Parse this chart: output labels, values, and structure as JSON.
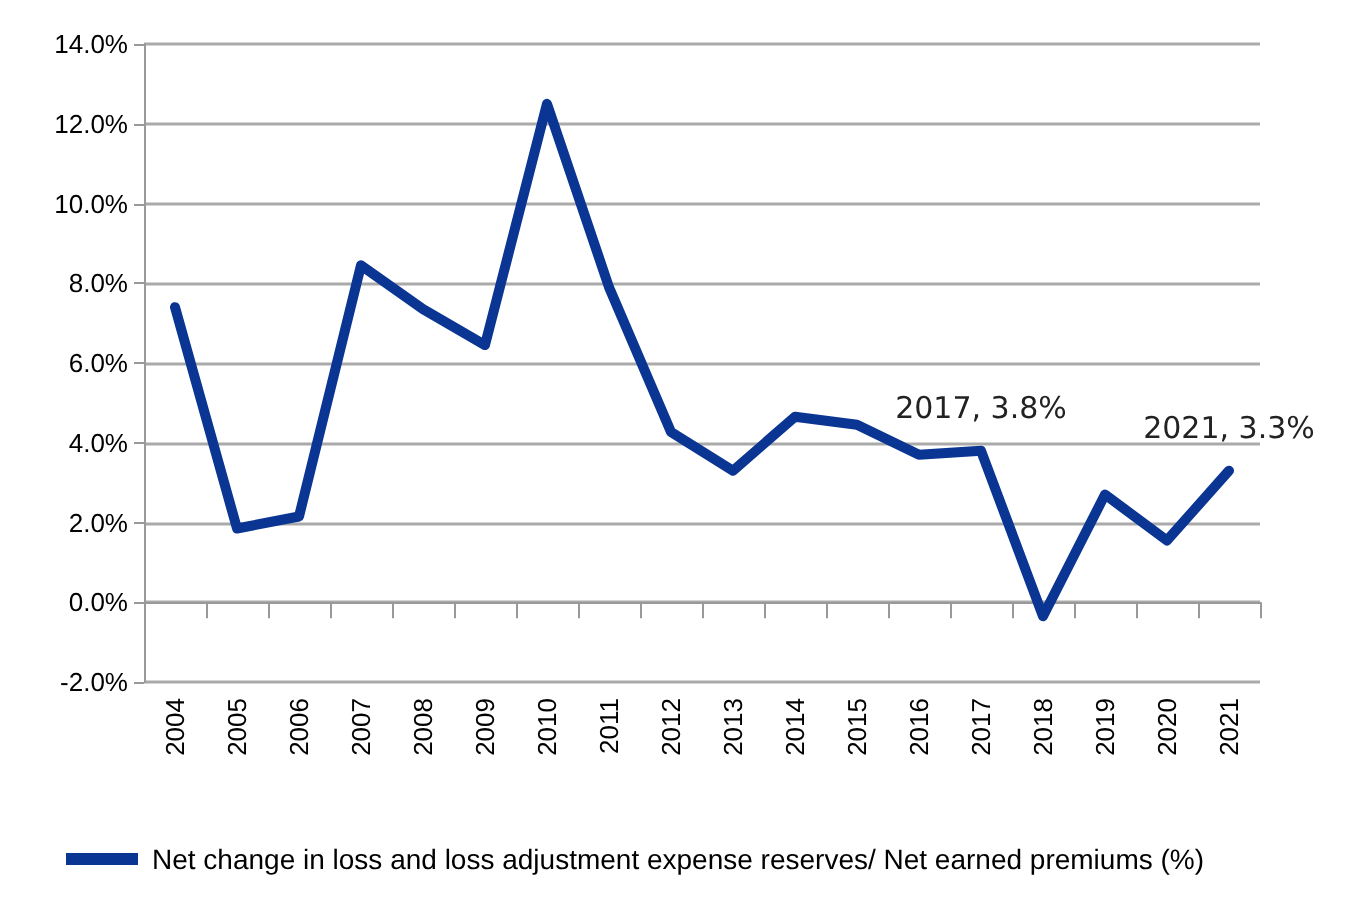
{
  "chart_data": {
    "type": "line",
    "categories": [
      "2004",
      "2005",
      "2006",
      "2007",
      "2008",
      "2009",
      "2010",
      "2011",
      "2012",
      "2013",
      "2014",
      "2015",
      "2016",
      "2017",
      "2018",
      "2019",
      "2020",
      "2021"
    ],
    "series": [
      {
        "name": "Net change in loss and loss adjustment expense reserves/ Net earned premiums (%)",
        "color": "#0a3593",
        "values": [
          7.4,
          1.85,
          2.15,
          8.45,
          7.35,
          6.45,
          12.5,
          7.9,
          4.27,
          3.3,
          4.65,
          4.45,
          3.7,
          3.8,
          -0.35,
          2.7,
          1.55,
          3.3
        ]
      }
    ],
    "ylim": [
      -2,
      14
    ],
    "yticks": [
      {
        "value": -2,
        "label": "-2.0%"
      },
      {
        "value": 0,
        "label": "0.0%"
      },
      {
        "value": 2,
        "label": "2.0%"
      },
      {
        "value": 4,
        "label": "4.0%"
      },
      {
        "value": 6,
        "label": "6.0%"
      },
      {
        "value": 8,
        "label": "8.0%"
      },
      {
        "value": 10,
        "label": "10.0%"
      },
      {
        "value": 12,
        "label": "12.0%"
      },
      {
        "value": 14,
        "label": "14.0%"
      }
    ],
    "annotations": [
      {
        "text": "2017, 3.8%",
        "x": "2017",
        "y": 3.8
      },
      {
        "text": "2021, 3.3%",
        "x": "2021",
        "y": 3.3
      }
    ],
    "grid": "y",
    "legend": "bottom",
    "marker": "none",
    "line_style": "solid"
  }
}
